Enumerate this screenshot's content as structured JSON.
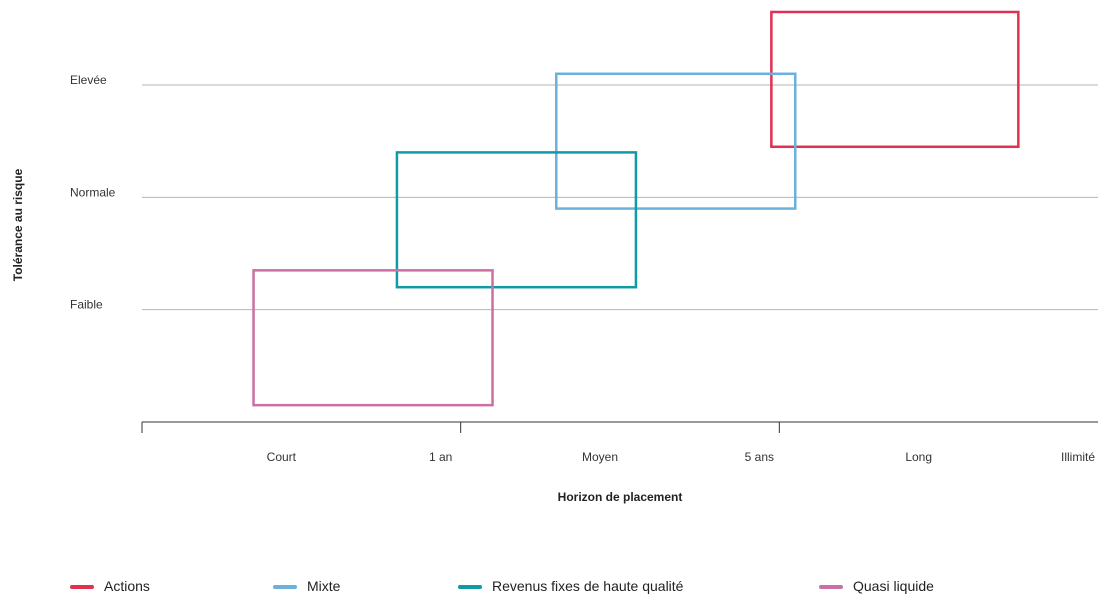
{
  "chart_data": {
    "type": "box",
    "xlabel": "Horizon de placement",
    "ylabel": "Tolérance au risque",
    "x_categories": [
      "Court",
      "1 an",
      "Moyen",
      "5 ans",
      "Long",
      "Illimité"
    ],
    "y_categories": [
      "Faible",
      "Normale",
      "Elevée"
    ],
    "xlim": [
      0,
      6
    ],
    "ylim": [
      0,
      3
    ],
    "grid": true,
    "legend_position": "bottom",
    "series": [
      {
        "name": "Actions",
        "color": "#e0314f",
        "x_range": [
          3.95,
          5.5
        ],
        "y_range": [
          2.45,
          3.65
        ]
      },
      {
        "name": "Mixte",
        "color": "#6bb1dc",
        "x_range": [
          2.6,
          4.1
        ],
        "y_range": [
          1.9,
          3.1
        ]
      },
      {
        "name": "Revenus fixes de haute qualité",
        "color": "#0e9ba5",
        "x_range": [
          1.6,
          3.1
        ],
        "y_range": [
          1.2,
          2.4
        ]
      },
      {
        "name": "Quasi liquide",
        "color": "#cc6fa3",
        "x_range": [
          0.7,
          2.2
        ],
        "y_range": [
          0.15,
          1.35
        ]
      }
    ]
  }
}
